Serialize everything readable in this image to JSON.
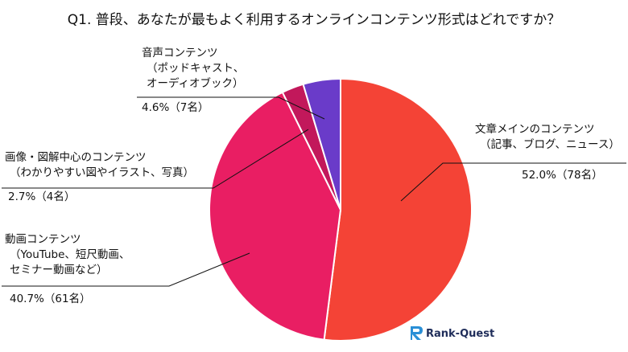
{
  "chart_data": {
    "type": "pie",
    "title": "Q1. 普段、あなたが最もよく利用するオンラインコンテンツ形式はどれですか？",
    "slices": [
      {
        "name_lines": [
          "文章メインのコンテンツ",
          "（記事、ブログ、ニュース）"
        ],
        "value": 52.0,
        "count_label": "52.0%（78名）",
        "color": "#f44336"
      },
      {
        "name_lines": [
          "動画コンテンツ",
          "（YouTube、短尺動画、",
          "セミナー動画など）"
        ],
        "value": 40.7,
        "count_label": "40.7%（61名）",
        "color": "#e91e63"
      },
      {
        "name_lines": [
          "画像・図解中心のコンテンツ",
          "（わかりやすい図やイラスト、写真）"
        ],
        "value": 2.7,
        "count_label": "2.7%（4名）",
        "color": "#c2185b"
      },
      {
        "name_lines": [
          "音声コンテンツ",
          "（ポッドキャスト、",
          "オーディオブック）"
        ],
        "value": 4.6,
        "count_label": "4.6%（7名）",
        "color": "#6a3bc9"
      }
    ]
  },
  "logo": {
    "text": "Rank-Quest"
  }
}
